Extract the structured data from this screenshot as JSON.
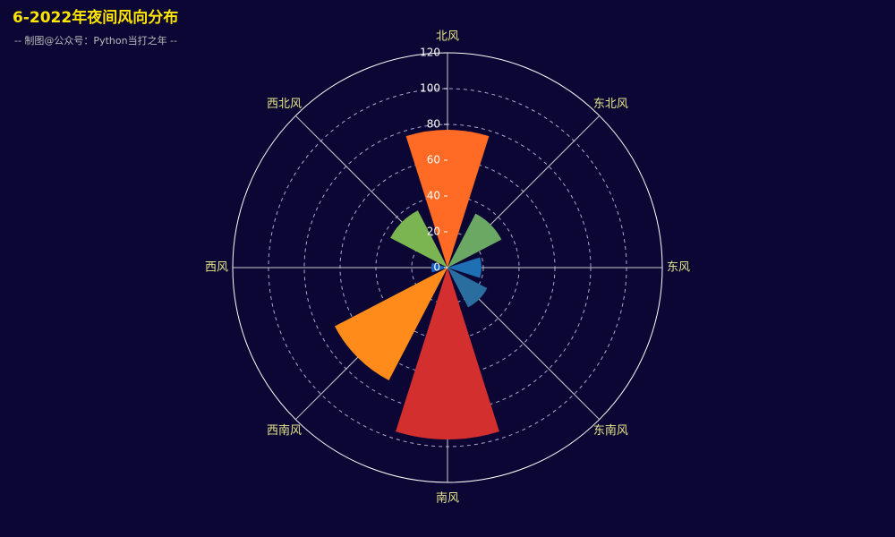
{
  "chart_data": {
    "type": "polar-bar",
    "title": "6-2022年夜间风向分布",
    "subtitle": "-- 制图@公众号：Python当打之年 --",
    "categories": [
      "北风",
      "东北风",
      "东风",
      "东南风",
      "南风",
      "西南风",
      "西风",
      "西北风"
    ],
    "values": [
      77,
      34,
      19,
      25,
      96,
      71,
      9,
      36
    ],
    "colors": [
      "#ff6b24",
      "#6aa864",
      "#1f6fb5",
      "#2a6ea0",
      "#d32f2f",
      "#ff8c1a",
      "#1a66c2",
      "#7ab552"
    ],
    "rlim": [
      0,
      120
    ],
    "rticks": [
      0,
      20,
      40,
      60,
      80,
      100,
      120
    ],
    "grid": true
  }
}
